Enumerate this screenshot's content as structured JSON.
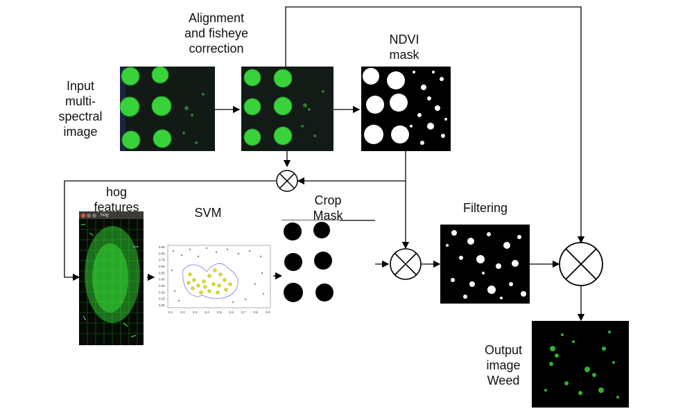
{
  "labels": {
    "input": "Input\nmulti-\nspectral\nimage",
    "alignment": "Alignment\nand fisheye\ncorrection",
    "ndvi": "NDVI\nmask",
    "hog": "hog\nfeatures",
    "svm": "SVM",
    "crop_mask": "Crop\nMask",
    "filtering": "Filtering",
    "output": "Output\nimage\nWeed",
    "hog_window_title": "hog"
  },
  "colors": {
    "plant_green": "#3ad23a",
    "hog_green": "#2fe02f",
    "svm_yellow": "#dede1e",
    "arrow": "#000000"
  },
  "svm_axis": {
    "x_ticks": [
      "0.1",
      "0.2",
      "0.3",
      "0.4",
      "0.5",
      "0.6",
      "0.7",
      "0.8",
      "0.9"
    ],
    "y_ticks": [
      "0.95",
      "0.85",
      "0.75",
      "0.65",
      "0.55",
      "0.45",
      "0.35",
      "0.25",
      "0.15",
      "0.05"
    ]
  }
}
